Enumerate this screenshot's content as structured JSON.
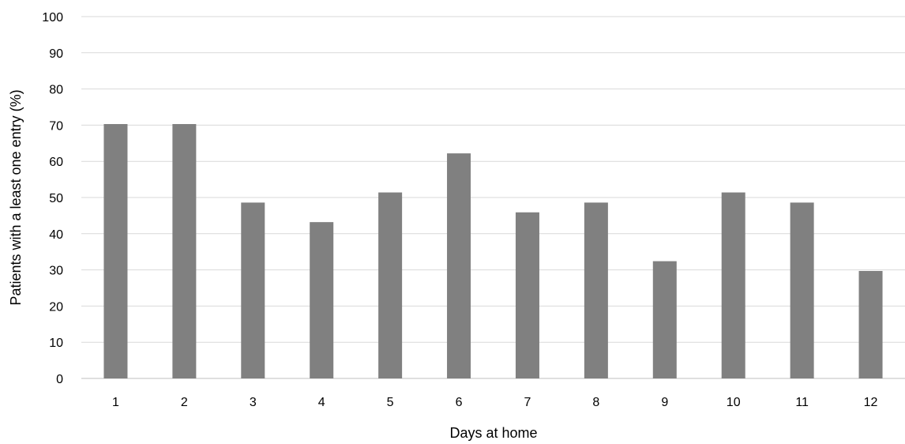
{
  "chart_data": {
    "type": "bar",
    "categories": [
      "1",
      "2",
      "3",
      "4",
      "5",
      "6",
      "7",
      "8",
      "9",
      "10",
      "11",
      "12"
    ],
    "values": [
      70.3,
      70.3,
      48.6,
      43.2,
      51.4,
      62.2,
      45.9,
      48.6,
      32.4,
      51.4,
      48.6,
      29.7
    ],
    "xlabel": "Days at home",
    "ylabel": "Patients with a least one entry (%)",
    "ylim": [
      0,
      100
    ],
    "yticks": [
      "0",
      "10",
      "20",
      "30",
      "40",
      "50",
      "60",
      "70",
      "80",
      "90",
      "100"
    ],
    "grid": true,
    "legend": "none",
    "colors": {
      "bar": "#808080",
      "grid": "#d9d9d9",
      "axis": "#bfbfbf"
    }
  }
}
